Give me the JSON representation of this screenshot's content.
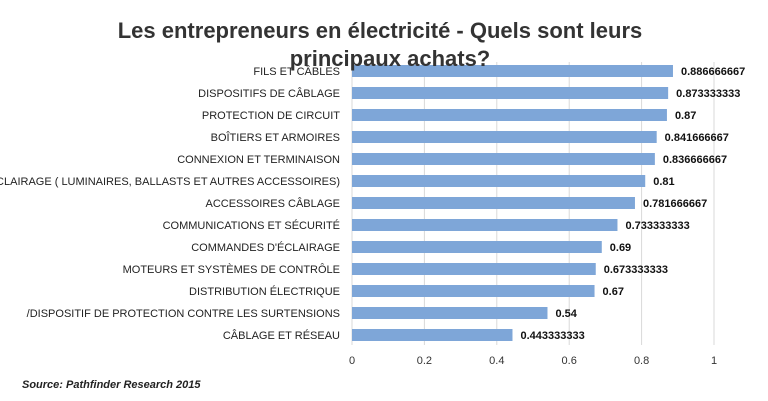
{
  "chart_data": {
    "type": "bar",
    "orientation": "horizontal",
    "title_lines": [
      "Les entrepreneurs en électricité - Quels sont leurs",
      "principaux achats?"
    ],
    "categories": [
      "FILS ET CÂBLES",
      "DISPOSITIFS DE CÂBLAGE",
      "PROTECTION DE CIRCUIT",
      "BOÎTIERS ET ARMOIRES",
      "CONNEXION ET TERMINAISON",
      "ÉCLAIRAGE ( LUMINAIRES, BALLASTS ET AUTRES ACCESSOIRES)",
      "ACCESSOIRES CÂBLAGE",
      "COMMUNICATIONS ET SÉCURITÉ",
      "COMMANDES D'ÉCLAIRAGE",
      "MOTEURS ET SYSTÈMES DE CONTRÔLE",
      "DISTRIBUTION ÉLECTRIQUE",
      "/DISPOSITIF DE PROTECTION CONTRE LES SURTENSIONS",
      "CÂBLAGE ET RÉSEAU"
    ],
    "values": [
      0.886666667,
      0.873333333,
      0.87,
      0.841666667,
      0.836666667,
      0.81,
      0.781666667,
      0.733333333,
      0.69,
      0.673333333,
      0.67,
      0.54,
      0.443333333
    ],
    "value_labels": [
      "0.886666667",
      "0.873333333",
      "0.87",
      "0.841666667",
      "0.836666667",
      "0.81",
      "0.781666667",
      "0.733333333",
      "0.69",
      "0.673333333",
      "0.67",
      "0.54",
      "0.443333333"
    ],
    "xlim": [
      0,
      1
    ],
    "xticks": [
      0,
      0.2,
      0.4,
      0.6,
      0.8,
      1
    ],
    "xtick_labels": [
      "0",
      "0.2",
      "0.4",
      "0.6",
      "0.8",
      "1"
    ],
    "grid": "vertical",
    "legend": "none",
    "bar_color": "#7ea6d8",
    "grid_color": "#d9d9d9",
    "xlabel": "",
    "ylabel": ""
  },
  "source": "Source:  Pathfinder Research 2015"
}
